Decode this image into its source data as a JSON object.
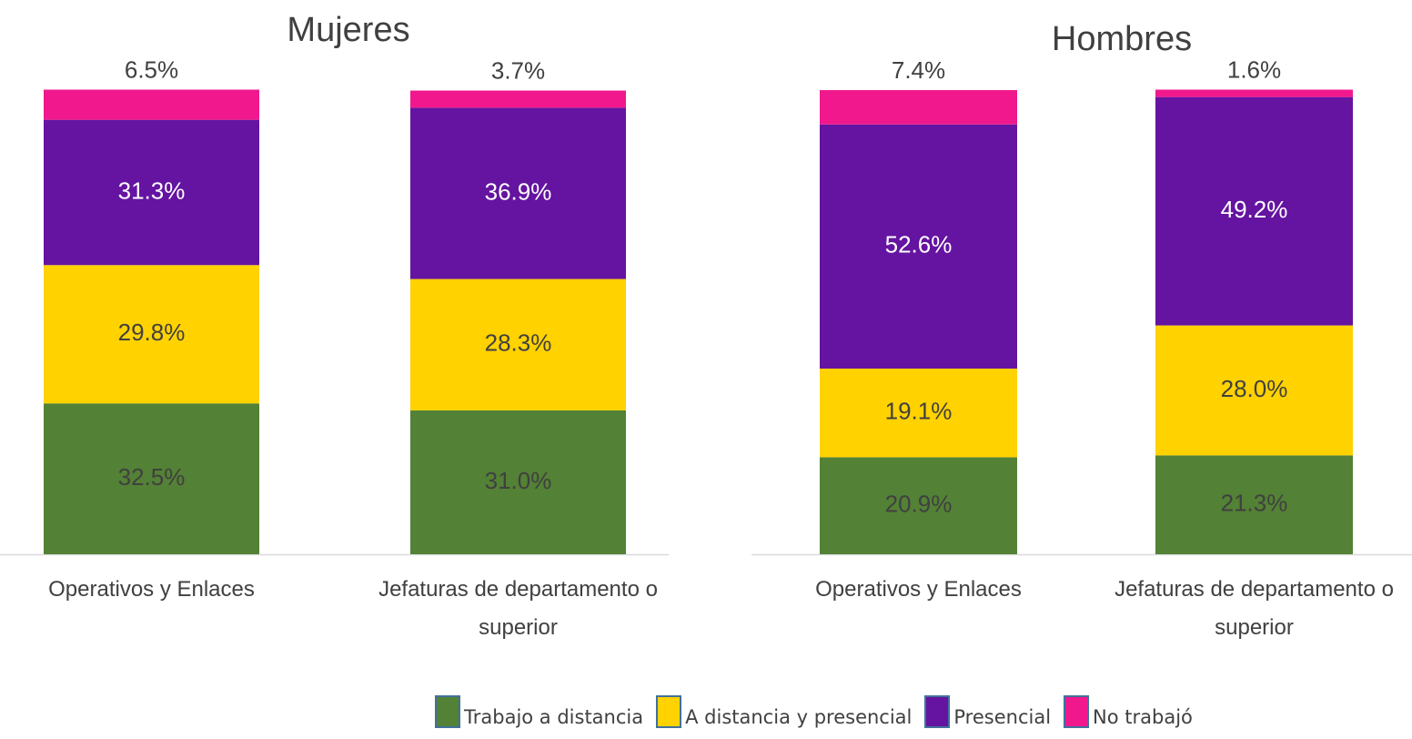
{
  "chart_data": [
    {
      "type": "bar",
      "stacked": true,
      "title": "Mujeres",
      "categories": [
        "Operativos y Enlaces",
        "Jefaturas de departamento o superior"
      ],
      "ylim": [
        0,
        100
      ],
      "series": [
        {
          "name": "Trabajo a distancia",
          "color": "#538135",
          "label_color": "#404040",
          "values": [
            32.5,
            31.0
          ],
          "value_labels": [
            "32.5%",
            "31.0%"
          ]
        },
        {
          "name": "A distancia y presencial",
          "color": "#ffd200",
          "label_color": "#404040",
          "values": [
            29.8,
            28.3
          ],
          "value_labels": [
            "29.8%",
            "28.3%"
          ]
        },
        {
          "name": "Presencial",
          "color": "#6414a0",
          "label_color": "#ffffff",
          "values": [
            31.3,
            36.9
          ],
          "value_labels": [
            "31.3%",
            "36.9%"
          ]
        },
        {
          "name": "No trabajó",
          "color": "#f0188c",
          "label_color": "#404040",
          "values": [
            6.5,
            3.7
          ],
          "value_labels": [
            "6.5%",
            "3.7%"
          ]
        }
      ]
    },
    {
      "type": "bar",
      "stacked": true,
      "title": "Hombres",
      "categories": [
        "Operativos y Enlaces",
        "Jefaturas de departamento o superior"
      ],
      "ylim": [
        0,
        100
      ],
      "series": [
        {
          "name": "Trabajo a distancia",
          "color": "#538135",
          "label_color": "#404040",
          "values": [
            20.9,
            21.3
          ],
          "value_labels": [
            "20.9%",
            "21.3%"
          ]
        },
        {
          "name": "A distancia y presencial",
          "color": "#ffd200",
          "label_color": "#404040",
          "values": [
            19.1,
            28.0
          ],
          "value_labels": [
            "19.1%",
            "28.0%"
          ]
        },
        {
          "name": "Presencial",
          "color": "#6414a0",
          "label_color": "#ffffff",
          "values": [
            52.6,
            49.2
          ],
          "value_labels": [
            "52.6%",
            "49.2%"
          ]
        },
        {
          "name": "No trabajó",
          "color": "#f0188c",
          "label_color": "#404040",
          "values": [
            7.4,
            1.6
          ],
          "value_labels": [
            "7.4%",
            "1.6%"
          ]
        }
      ]
    }
  ]
}
